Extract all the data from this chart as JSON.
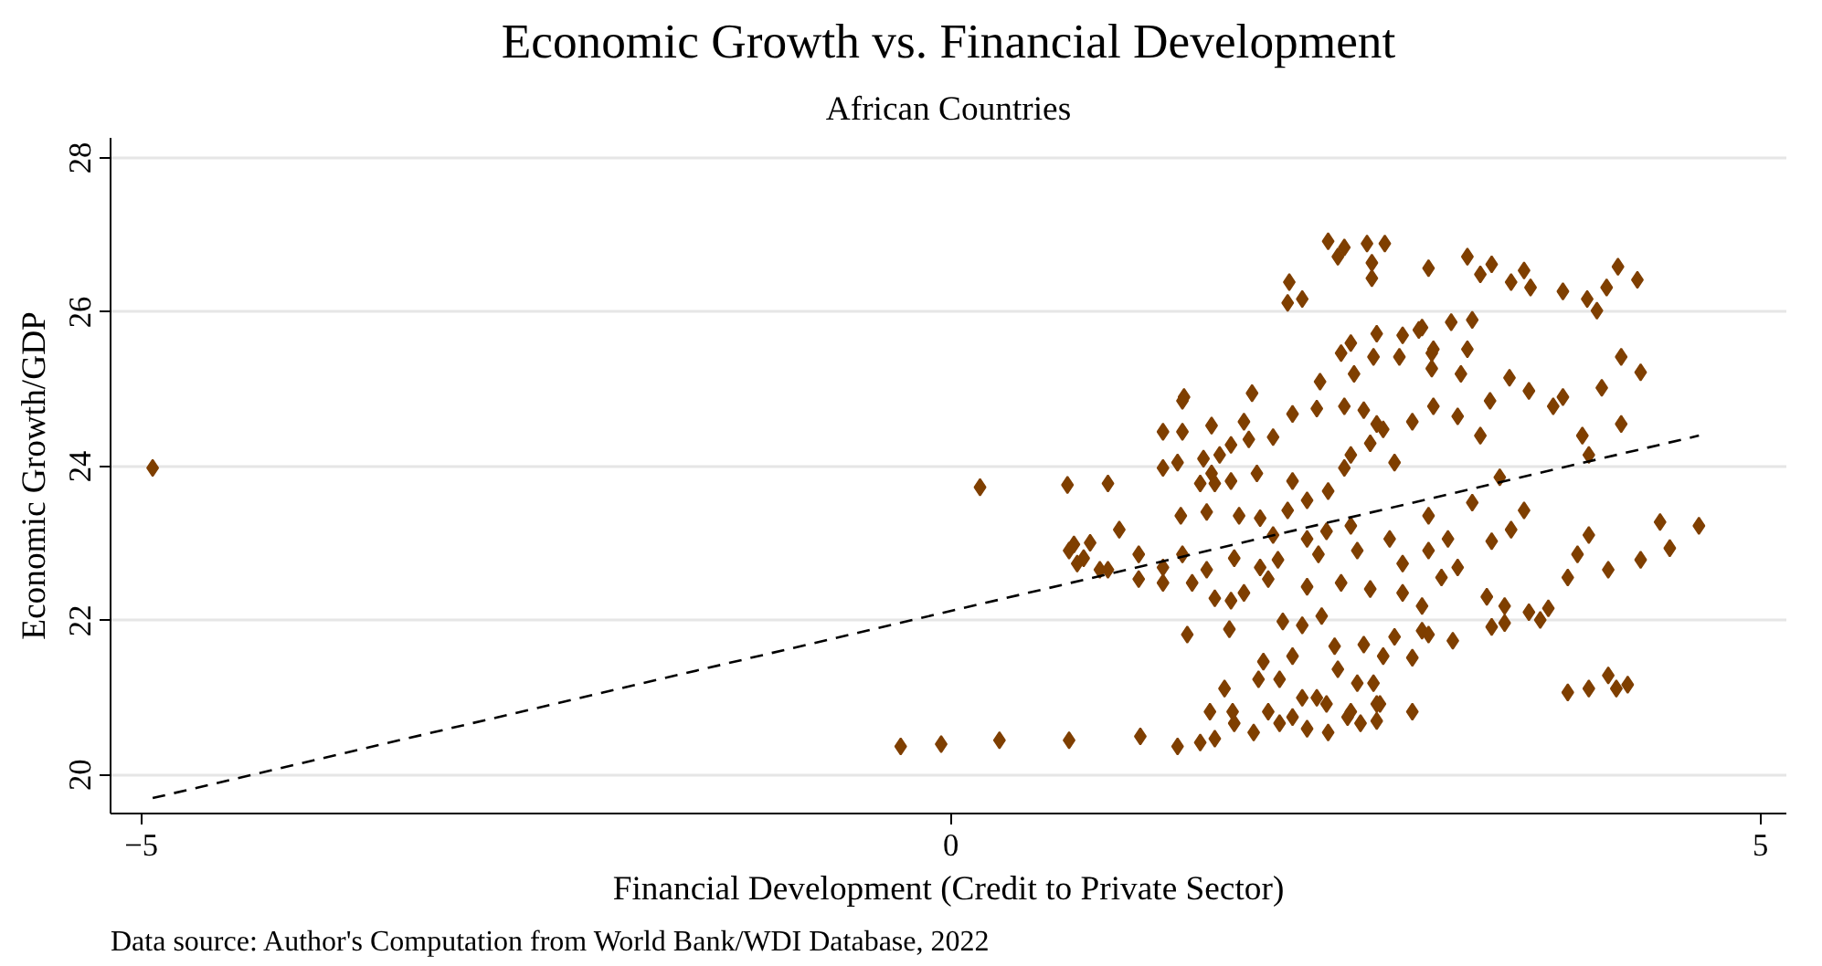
{
  "chart_data": {
    "type": "scatter",
    "title": "Economic Growth vs. Financial Development",
    "subtitle": "African Countries",
    "xlabel": "Financial Development (Credit to Private Sector)",
    "ylabel": "Economic Growth/GDP",
    "annotations": [
      "Data source: Author's Computation from World Bank/WDI Database, 2022"
    ],
    "xlim": [
      -5.19,
      5.16
    ],
    "ylim": [
      19.5,
      28.26
    ],
    "xticks": [
      -5,
      0,
      5
    ],
    "yticks": [
      20,
      22,
      24,
      26,
      28
    ],
    "grid": "y",
    "marker": "diamond",
    "series": [
      {
        "color": "#7f3f00",
        "x": [
          -4.93,
          -0.31,
          -0.06,
          0.3,
          0.73,
          1.17,
          1.4,
          1.54,
          1.63,
          1.75,
          1.87,
          2.03,
          2.2,
          2.33,
          2.45,
          2.63,
          2.85,
          0.18,
          0.72,
          0.73,
          0.82,
          0.97,
          1.16,
          0.97,
          1.43,
          1.44,
          1.63,
          2.33,
          2.43,
          2.57,
          2.68,
          2.39,
          2.6,
          2.6,
          2.95,
          2.09,
          2.17,
          2.08,
          2.63,
          2.47,
          2.41,
          2.61,
          2.77,
          2.79,
          2.91,
          2.97,
          2.49,
          2.28,
          1.86,
          1.43,
          2.11,
          2.26,
          2.43,
          2.55,
          2.63,
          2.85,
          2.98,
          1.31,
          1.61,
          1.81,
          1.84,
          1.73,
          1.66,
          1.56,
          1.99,
          1.31,
          1.4,
          1.61,
          1.73,
          1.54,
          1.89,
          2.47,
          2.43,
          2.59,
          2.67,
          2.74,
          2.11,
          2.33,
          3.19,
          3.27,
          3.34,
          3.54,
          3.46,
          3.58,
          3.78,
          3.93,
          3.99,
          4.05,
          4.12,
          4.24,
          2.89,
          3.09,
          3.22,
          2.98,
          3.19,
          2.97,
          3.15,
          3.45,
          3.57,
          3.78,
          3.72,
          4.02,
          4.14,
          4.26,
          3.13,
          3.27,
          3.33,
          3.9,
          3.94,
          4.14,
          3.39,
          1.42,
          1.58,
          1.78,
          1.91,
          2.08,
          2.2,
          1.04,
          0.76,
          0.86,
          1.16,
          1.43,
          0.78,
          0.92,
          1.31,
          1.58,
          1.75,
          1.91,
          2.02,
          1.99,
          2.2,
          2.32,
          2.47,
          2.27,
          2.51,
          2.71,
          2.79,
          2.95,
          1.31,
          1.49,
          1.63,
          1.73,
          1.81,
          1.96,
          2.2,
          2.41,
          2.59,
          2.79,
          2.91,
          2.05,
          2.17,
          2.29,
          1.46,
          1.72,
          2.37,
          2.55,
          2.74,
          2.91,
          2.67,
          2.85,
          2.11,
          1.93,
          1.9,
          2.03,
          1.69,
          2.39,
          2.51,
          2.61,
          2.17,
          2.26,
          1.96,
          2.11,
          1.6,
          1.74,
          2.32,
          2.47,
          2.65,
          2.53,
          2.63,
          2.95,
          3.22,
          3.54,
          3.07,
          3.34,
          3.46,
          3.94,
          3.87,
          3.81,
          4.06,
          4.38,
          4.62,
          4.44,
          4.26,
          3.03,
          3.13,
          3.31,
          3.42,
          3.57,
          3.69,
          3.64,
          3.34,
          3.42,
          2.95,
          3.1,
          3.81,
          3.94,
          4.06,
          4.11,
          4.18
        ],
        "values": [
          23.98,
          20.37,
          20.4,
          20.45,
          20.45,
          20.5,
          20.37,
          20.42,
          20.47,
          20.67,
          20.55,
          20.67,
          20.6,
          20.55,
          20.75,
          20.92,
          20.82,
          23.73,
          23.76,
          22.91,
          22.81,
          22.66,
          22.54,
          23.78,
          24.45,
          24.9,
          23.78,
          26.92,
          26.84,
          26.89,
          26.89,
          26.72,
          26.64,
          26.44,
          26.57,
          26.39,
          26.17,
          26.12,
          25.72,
          25.6,
          25.47,
          25.42,
          25.42,
          25.7,
          25.8,
          25.47,
          25.2,
          25.1,
          24.95,
          24.85,
          24.68,
          24.75,
          24.78,
          24.73,
          24.55,
          24.58,
          24.78,
          24.45,
          24.53,
          24.58,
          24.35,
          24.28,
          24.15,
          24.1,
          24.38,
          23.98,
          24.05,
          23.91,
          23.81,
          23.78,
          23.91,
          24.15,
          23.98,
          24.3,
          24.48,
          24.05,
          23.81,
          23.68,
          26.72,
          26.49,
          26.62,
          26.54,
          26.39,
          26.32,
          26.27,
          26.17,
          26.02,
          26.32,
          26.59,
          26.42,
          25.77,
          25.87,
          25.9,
          25.52,
          25.52,
          25.27,
          25.2,
          25.15,
          24.98,
          24.9,
          24.78,
          25.02,
          25.42,
          25.22,
          24.65,
          24.4,
          24.85,
          24.4,
          24.15,
          24.55,
          23.86,
          23.36,
          23.41,
          23.36,
          23.33,
          23.43,
          23.56,
          23.18,
          22.99,
          23.01,
          22.86,
          22.86,
          22.74,
          22.66,
          22.69,
          22.66,
          22.81,
          22.69,
          22.79,
          23.11,
          23.06,
          23.16,
          23.23,
          22.86,
          22.91,
          23.06,
          22.74,
          22.91,
          22.49,
          22.49,
          22.29,
          22.26,
          22.36,
          22.54,
          22.44,
          22.49,
          22.41,
          22.36,
          22.19,
          21.99,
          21.94,
          22.06,
          21.82,
          21.89,
          21.67,
          21.69,
          21.79,
          21.87,
          21.54,
          21.52,
          21.54,
          21.47,
          21.24,
          21.24,
          21.12,
          21.37,
          21.19,
          21.19,
          21.0,
          21.0,
          20.82,
          20.75,
          20.82,
          20.82,
          20.92,
          20.82,
          20.92,
          20.67,
          20.7,
          23.36,
          23.53,
          23.43,
          23.06,
          23.03,
          23.18,
          23.11,
          22.86,
          22.56,
          22.66,
          23.28,
          23.23,
          22.94,
          22.79,
          22.56,
          22.69,
          22.31,
          22.19,
          22.11,
          22.16,
          22.01,
          21.92,
          21.97,
          21.82,
          21.74,
          21.07,
          21.12,
          21.29,
          21.12,
          21.17
        ]
      },
      {
        "type": "line",
        "color": "#000000",
        "line_style": "dashed",
        "marker": "none",
        "x": [
          -4.93,
          4.62
        ],
        "values": [
          19.7,
          24.4
        ]
      }
    ]
  }
}
